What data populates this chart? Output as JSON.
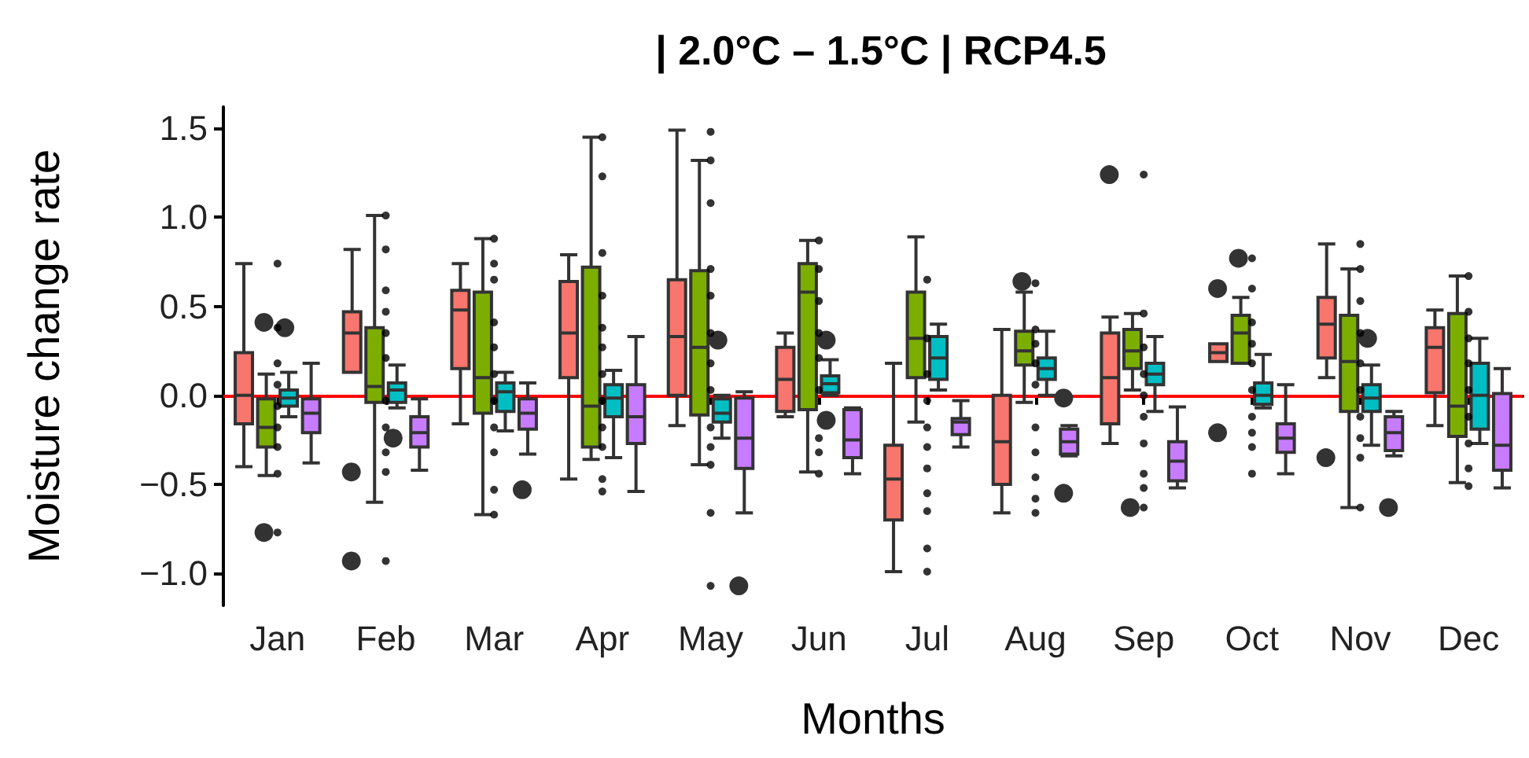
{
  "chart_data": {
    "type": "box",
    "title": "| 2.0°C – 1.5°C | RCP4.5",
    "xlabel": "Months",
    "ylabel": "Moisture change rate",
    "categories": [
      "Jan",
      "Feb",
      "Mar",
      "Apr",
      "May",
      "Jun",
      "Jul",
      "Aug",
      "Sep",
      "Oct",
      "Nov",
      "Dec"
    ],
    "ylim": [
      -1.18,
      1.62
    ],
    "yticks": [
      {
        "value": -1.0,
        "label": "−1.0"
      },
      {
        "value": -0.5,
        "label": "−0.5"
      },
      {
        "value": 0.0,
        "label": "0.0"
      },
      {
        "value": 0.5,
        "label": "0.5"
      },
      {
        "value": 1.0,
        "label": "1.0"
      },
      {
        "value": 1.5,
        "label": "1.5"
      }
    ],
    "grid": false,
    "ref_lines": [
      {
        "axis": "y",
        "value": 0,
        "color": "#ff0000"
      }
    ],
    "series": [
      {
        "color": "#f8766d",
        "boxes": [
          {
            "low": -0.4,
            "q1": -0.16,
            "median": 0.0,
            "q3": 0.24,
            "high": 0.74
          },
          {
            "low": 0.13,
            "q1": 0.13,
            "median": 0.35,
            "q3": 0.47,
            "high": 0.82,
            "outliers": [
              -0.43,
              -0.93
            ]
          },
          {
            "low": -0.16,
            "q1": 0.15,
            "median": 0.48,
            "q3": 0.59,
            "high": 0.74
          },
          {
            "low": -0.47,
            "q1": 0.1,
            "median": 0.35,
            "q3": 0.64,
            "high": 0.79
          },
          {
            "low": -0.17,
            "q1": 0.0,
            "median": 0.33,
            "q3": 0.65,
            "high": 1.49
          },
          {
            "low": -0.12,
            "q1": -0.09,
            "median": 0.09,
            "q3": 0.27,
            "high": 0.35
          },
          {
            "low": -0.99,
            "q1": -0.7,
            "median": -0.47,
            "q3": -0.28,
            "high": 0.18
          },
          {
            "low": -0.66,
            "q1": -0.5,
            "median": -0.26,
            "q3": 0.0,
            "high": 0.37
          },
          {
            "low": -0.27,
            "q1": -0.16,
            "median": 0.1,
            "q3": 0.35,
            "high": 0.44,
            "outliers": [
              1.24
            ]
          },
          {
            "low": 0.19,
            "q1": 0.19,
            "median": 0.24,
            "q3": 0.29,
            "high": 0.29,
            "outliers": [
              0.6,
              -0.21
            ]
          },
          {
            "low": 0.1,
            "q1": 0.21,
            "median": 0.4,
            "q3": 0.55,
            "high": 0.85,
            "outliers": [
              -0.35
            ]
          },
          {
            "low": -0.17,
            "q1": 0.015,
            "median": 0.27,
            "q3": 0.38,
            "high": 0.48
          }
        ]
      },
      {
        "color": "#7cae00",
        "boxes": [
          {
            "low": -0.45,
            "q1": -0.29,
            "median": -0.18,
            "q3": -0.02,
            "high": 0.12,
            "outliers": [
              0.41,
              -0.77
            ]
          },
          {
            "low": -0.6,
            "q1": -0.04,
            "median": 0.05,
            "q3": 0.38,
            "high": 1.01
          },
          {
            "low": -0.67,
            "q1": -0.1,
            "median": 0.1,
            "q3": 0.58,
            "high": 0.88
          },
          {
            "low": -0.36,
            "q1": -0.29,
            "median": -0.06,
            "q3": 0.72,
            "high": 1.45
          },
          {
            "low": -0.39,
            "q1": -0.11,
            "median": 0.27,
            "q3": 0.7,
            "high": 1.32
          },
          {
            "low": -0.43,
            "q1": -0.08,
            "median": 0.58,
            "q3": 0.74,
            "high": 0.87
          },
          {
            "low": -0.15,
            "q1": 0.1,
            "median": 0.32,
            "q3": 0.58,
            "high": 0.89
          },
          {
            "low": -0.04,
            "q1": 0.17,
            "median": 0.25,
            "q3": 0.36,
            "high": 0.58,
            "outliers": [
              0.64
            ]
          },
          {
            "low": 0.03,
            "q1": 0.15,
            "median": 0.25,
            "q3": 0.37,
            "high": 0.46,
            "outliers": [
              -0.63
            ]
          },
          {
            "low": 0.18,
            "q1": 0.18,
            "median": 0.35,
            "q3": 0.45,
            "high": 0.55,
            "outliers": [
              0.77
            ]
          },
          {
            "low": -0.63,
            "q1": -0.09,
            "median": 0.19,
            "q3": 0.45,
            "high": 0.71
          },
          {
            "low": -0.49,
            "q1": -0.23,
            "median": -0.06,
            "q3": 0.46,
            "high": 0.67
          }
        ]
      },
      {
        "color": "#00bfc4",
        "boxes": [
          {
            "low": -0.12,
            "q1": -0.06,
            "median": -0.015,
            "q3": 0.03,
            "high": 0.13,
            "outliers": [
              0.38
            ]
          },
          {
            "low": -0.07,
            "q1": -0.04,
            "median": 0.03,
            "q3": 0.07,
            "high": 0.17,
            "outliers": [
              -0.24
            ]
          },
          {
            "low": -0.2,
            "q1": -0.09,
            "median": 0.02,
            "q3": 0.07,
            "high": 0.13
          },
          {
            "low": -0.35,
            "q1": -0.12,
            "median": -0.015,
            "q3": 0.06,
            "high": 0.14
          },
          {
            "low": -0.24,
            "q1": -0.15,
            "median": -0.1,
            "q3": -0.02,
            "high": 0.0,
            "outliers": [
              0.31
            ]
          },
          {
            "low": 0.0,
            "q1": 0.015,
            "median": 0.065,
            "q3": 0.11,
            "high": 0.2,
            "outliers": [
              0.31,
              -0.14
            ]
          },
          {
            "low": 0.03,
            "q1": 0.09,
            "median": 0.21,
            "q3": 0.33,
            "high": 0.4
          },
          {
            "low": 0.0,
            "q1": 0.09,
            "median": 0.15,
            "q3": 0.21,
            "high": 0.36
          },
          {
            "low": -0.09,
            "q1": 0.06,
            "median": 0.12,
            "q3": 0.18,
            "high": 0.33
          },
          {
            "low": -0.07,
            "q1": -0.05,
            "median": 0.0,
            "q3": 0.07,
            "high": 0.23
          },
          {
            "low": -0.28,
            "q1": -0.09,
            "median": -0.015,
            "q3": 0.06,
            "high": 0.17,
            "outliers": [
              0.32
            ]
          },
          {
            "low": -0.27,
            "q1": -0.19,
            "median": 0.0,
            "q3": 0.18,
            "high": 0.32
          }
        ]
      },
      {
        "color": "#c77cff",
        "boxes": [
          {
            "low": -0.38,
            "q1": -0.21,
            "median": -0.1,
            "q3": -0.02,
            "high": 0.18
          },
          {
            "low": -0.42,
            "q1": -0.29,
            "median": -0.21,
            "q3": -0.12,
            "high": -0.02
          },
          {
            "low": -0.33,
            "q1": -0.19,
            "median": -0.1,
            "q3": -0.02,
            "high": 0.07,
            "outliers": [
              -0.53
            ]
          },
          {
            "low": -0.54,
            "q1": -0.27,
            "median": -0.12,
            "q3": 0.06,
            "high": 0.33
          },
          {
            "low": -0.66,
            "q1": -0.41,
            "median": -0.24,
            "q3": -0.015,
            "high": 0.02,
            "outliers": [
              -1.07
            ]
          },
          {
            "low": -0.44,
            "q1": -0.35,
            "median": -0.25,
            "q3": -0.08,
            "high": -0.07
          },
          {
            "low": -0.29,
            "q1": -0.22,
            "median": -0.15,
            "q3": -0.13,
            "high": -0.03
          },
          {
            "low": -0.34,
            "q1": -0.33,
            "median": -0.26,
            "q3": -0.19,
            "high": -0.17,
            "outliers": [
              -0.015,
              -0.55
            ]
          },
          {
            "low": -0.52,
            "q1": -0.48,
            "median": -0.37,
            "q3": -0.26,
            "high": -0.065
          },
          {
            "low": -0.44,
            "q1": -0.32,
            "median": -0.24,
            "q3": -0.16,
            "high": 0.06
          },
          {
            "low": -0.34,
            "q1": -0.31,
            "median": -0.21,
            "q3": -0.12,
            "high": -0.09,
            "outliers": [
              -0.63
            ]
          },
          {
            "low": -0.52,
            "q1": -0.42,
            "median": -0.28,
            "q3": 0.01,
            "high": 0.15
          }
        ]
      },
      {
        "type": "scatter",
        "color": "#000000",
        "marker": "circle",
        "x": [
          "Jan",
          "Jan",
          "Jan",
          "Jan",
          "Jan",
          "Jan",
          "Jan",
          "Jan",
          "Jan",
          "Feb",
          "Feb",
          "Feb",
          "Feb",
          "Feb",
          "Feb",
          "Feb",
          "Feb",
          "Feb",
          "Feb",
          "Feb",
          "Mar",
          "Mar",
          "Mar",
          "Mar",
          "Mar",
          "Mar",
          "Mar",
          "Mar",
          "Mar",
          "Mar",
          "Mar",
          "Apr",
          "Apr",
          "Apr",
          "Apr",
          "Apr",
          "Apr",
          "Apr",
          "Apr",
          "Apr",
          "Apr",
          "Apr",
          "Apr",
          "May",
          "May",
          "May",
          "May",
          "May",
          "May",
          "May",
          "May",
          "May",
          "May",
          "May",
          "May",
          "May",
          "Jun",
          "Jun",
          "Jun",
          "Jun",
          "Jun",
          "Jun",
          "Jun",
          "Jun",
          "Jun",
          "Jul",
          "Jul",
          "Jul",
          "Jul",
          "Jul",
          "Jul",
          "Jul",
          "Jul",
          "Jul",
          "Jul",
          "Jul",
          "Aug",
          "Aug",
          "Aug",
          "Aug",
          "Aug",
          "Aug",
          "Aug",
          "Aug",
          "Aug",
          "Aug",
          "Sep",
          "Sep",
          "Sep",
          "Sep",
          "Sep",
          "Sep",
          "Sep",
          "Sep",
          "Sep",
          "Sep",
          "Oct",
          "Oct",
          "Oct",
          "Oct",
          "Oct",
          "Oct",
          "Oct",
          "Oct",
          "Oct",
          "Oct",
          "Nov",
          "Nov",
          "Nov",
          "Nov",
          "Nov",
          "Nov",
          "Nov",
          "Nov",
          "Nov",
          "Nov",
          "Dec",
          "Dec",
          "Dec",
          "Dec",
          "Dec",
          "Dec",
          "Dec",
          "Dec",
          "Dec"
        ],
        "values": [
          0.74,
          0.38,
          0.18,
          0.06,
          -0.06,
          -0.18,
          -0.29,
          -0.44,
          -0.77,
          1.01,
          0.82,
          0.59,
          0.47,
          0.35,
          0.21,
          -0.03,
          -0.18,
          -0.32,
          -0.43,
          -0.93,
          0.88,
          0.74,
          0.65,
          0.41,
          0.27,
          0.12,
          -0.03,
          -0.18,
          -0.32,
          -0.53,
          -0.67,
          1.45,
          1.23,
          0.8,
          0.56,
          0.38,
          0.27,
          0.12,
          -0.03,
          -0.18,
          -0.29,
          -0.47,
          -0.54,
          1.48,
          1.32,
          1.08,
          0.71,
          0.56,
          0.35,
          0.18,
          0.03,
          -0.18,
          -0.29,
          -0.39,
          -0.66,
          -1.07,
          0.87,
          0.71,
          0.53,
          0.35,
          0.21,
          0.03,
          -0.24,
          -0.32,
          -0.44,
          0.65,
          0.32,
          0.12,
          -0.03,
          -0.18,
          -0.29,
          -0.41,
          -0.55,
          -0.65,
          -0.86,
          -0.99,
          0.63,
          0.37,
          0.29,
          0.18,
          0.06,
          -0.18,
          -0.32,
          -0.46,
          -0.58,
          -0.66,
          1.24,
          0.46,
          0.27,
          0.12,
          0.0,
          -0.12,
          -0.27,
          -0.44,
          -0.52,
          -0.63,
          0.77,
          0.6,
          0.41,
          0.29,
          0.18,
          0.03,
          -0.12,
          -0.21,
          -0.29,
          -0.44,
          0.85,
          0.71,
          0.53,
          0.35,
          0.18,
          0.03,
          -0.12,
          -0.24,
          -0.35,
          -0.63,
          0.67,
          0.47,
          0.32,
          0.18,
          0.03,
          -0.12,
          -0.27,
          -0.41,
          -0.51
        ]
      }
    ]
  }
}
